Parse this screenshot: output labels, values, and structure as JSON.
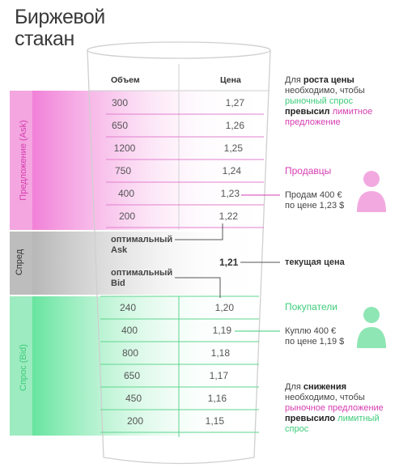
{
  "title": "Биржевой\nстакан",
  "headers": {
    "volume": "Объем",
    "price": "Цена"
  },
  "ask_rows": [
    {
      "volume": "300",
      "price": "1,27"
    },
    {
      "volume": "650",
      "price": "1,26"
    },
    {
      "volume": "1200",
      "price": "1,25"
    },
    {
      "volume": "750",
      "price": "1,24"
    },
    {
      "volume": "400",
      "price": "1,23"
    },
    {
      "volume": "200",
      "price": "1,22"
    }
  ],
  "bid_rows": [
    {
      "volume": "240",
      "price": "1,20"
    },
    {
      "volume": "400",
      "price": "1,19"
    },
    {
      "volume": "800",
      "price": "1,18"
    },
    {
      "volume": "650",
      "price": "1,17"
    },
    {
      "volume": "450",
      "price": "1,16"
    },
    {
      "volume": "200",
      "price": "1,15"
    }
  ],
  "spread": {
    "optimal_ask": "оптимальный\nAsk",
    "optimal_bid": "оптимальный\nBid",
    "current_price": "1,21"
  },
  "side_labels": {
    "ask": "Предложение (Ask)",
    "spread": "Спред",
    "bid": "Спрос (Bid)"
  },
  "notes": {
    "rise": {
      "p1": "Для ",
      "b1": "роста цены",
      "p2": " необходимо, чтобы ",
      "g1": "рыночный спрос",
      "b2": "превысил",
      "m1": " лимитное предложение"
    },
    "sellers": "Продавцы",
    "sell_order": "Продам 400 €\nпо цене 1,23 $",
    "current_price_label": "текущая цена",
    "buyers": "Покупатели",
    "buy_order": "Куплю 400 €\nпо цене 1,19 $",
    "fall": {
      "p1": "Для ",
      "b1": "снижения",
      "p2": " необходимо, чтобы ",
      "m1": "рыночное предложение",
      "b2": "превысило",
      "g1": " лимитный спрос"
    }
  },
  "colors": {
    "ask": "#e040c0",
    "bid": "#3dcc7a",
    "spread": "#b0b0b0",
    "glass_outline": "#cfcfcf"
  },
  "icons": {
    "seller": "person-icon",
    "buyer": "person-icon"
  }
}
